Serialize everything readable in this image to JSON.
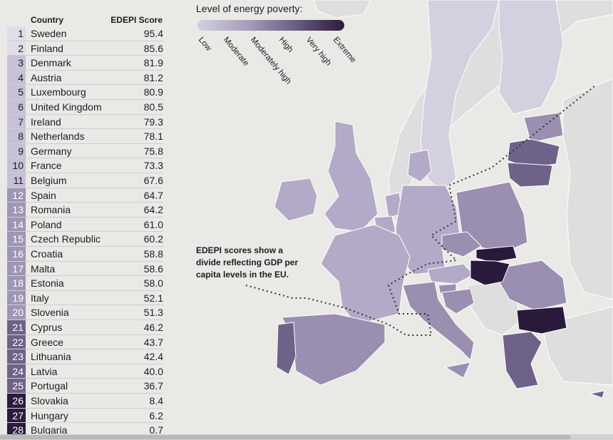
{
  "table": {
    "header_country": "Country",
    "header_score": "EDEPI Score",
    "rows": [
      {
        "rank": "1",
        "country": "Sweden",
        "score": "95.4",
        "color": "#e0dde8",
        "text_color": "#1d1d1d"
      },
      {
        "rank": "2",
        "country": "Finland",
        "score": "85.6",
        "color": "#e0dde8",
        "text_color": "#1d1d1d"
      },
      {
        "rank": "3",
        "country": "Denmark",
        "score": "81.9",
        "color": "#c7c0d6",
        "text_color": "#1d1d1d"
      },
      {
        "rank": "4",
        "country": "Austria",
        "score": "81.2",
        "color": "#c7c0d6",
        "text_color": "#1d1d1d"
      },
      {
        "rank": "5",
        "country": "Luxembourg",
        "score": "80.9",
        "color": "#c7c0d6",
        "text_color": "#1d1d1d"
      },
      {
        "rank": "6",
        "country": "United Kingdom",
        "score": "80.5",
        "color": "#c7c0d6",
        "text_color": "#1d1d1d"
      },
      {
        "rank": "7",
        "country": "Ireland",
        "score": "79.3",
        "color": "#c7c0d6",
        "text_color": "#1d1d1d"
      },
      {
        "rank": "8",
        "country": "Netherlands",
        "score": "78.1",
        "color": "#c7c0d6",
        "text_color": "#1d1d1d"
      },
      {
        "rank": "9",
        "country": "Germany",
        "score": "75.8",
        "color": "#c7c0d6",
        "text_color": "#1d1d1d"
      },
      {
        "rank": "10",
        "country": "France",
        "score": "73.3",
        "color": "#c7c0d6",
        "text_color": "#1d1d1d"
      },
      {
        "rank": "11",
        "country": "Belgium",
        "score": "67.6",
        "color": "#c7c0d6",
        "text_color": "#1d1d1d"
      },
      {
        "rank": "12",
        "country": "Spain",
        "score": "64.7",
        "color": "#9f95b5",
        "text_color": "#ffffff"
      },
      {
        "rank": "13",
        "country": "Romania",
        "score": "64.2",
        "color": "#9f95b5",
        "text_color": "#ffffff"
      },
      {
        "rank": "14",
        "country": "Poland",
        "score": "61.0",
        "color": "#9f95b5",
        "text_color": "#ffffff"
      },
      {
        "rank": "15",
        "country": "Czech Republic",
        "score": "60.2",
        "color": "#9f95b5",
        "text_color": "#ffffff"
      },
      {
        "rank": "16",
        "country": "Croatia",
        "score": "58.8",
        "color": "#9f95b5",
        "text_color": "#ffffff"
      },
      {
        "rank": "17",
        "country": "Malta",
        "score": "58.6",
        "color": "#9f95b5",
        "text_color": "#ffffff"
      },
      {
        "rank": "18",
        "country": "Estonia",
        "score": "58.0",
        "color": "#9f95b5",
        "text_color": "#ffffff"
      },
      {
        "rank": "19",
        "country": "Italy",
        "score": "52.1",
        "color": "#9f95b5",
        "text_color": "#ffffff"
      },
      {
        "rank": "20",
        "country": "Slovenia",
        "score": "51.3",
        "color": "#9f95b5",
        "text_color": "#ffffff"
      },
      {
        "rank": "21",
        "country": "Cyprus",
        "score": "46.2",
        "color": "#6f6288",
        "text_color": "#ffffff"
      },
      {
        "rank": "22",
        "country": "Greece",
        "score": "43.7",
        "color": "#6f6288",
        "text_color": "#ffffff"
      },
      {
        "rank": "23",
        "country": "Lithuania",
        "score": "42.4",
        "color": "#6f6288",
        "text_color": "#ffffff"
      },
      {
        "rank": "24",
        "country": "Latvia",
        "score": "40.0",
        "color": "#6f6288",
        "text_color": "#ffffff"
      },
      {
        "rank": "25",
        "country": "Portugal",
        "score": "36.7",
        "color": "#6f6288",
        "text_color": "#ffffff"
      },
      {
        "rank": "26",
        "country": "Slovakia",
        "score": "8.4",
        "color": "#2b1b3c",
        "text_color": "#ffffff"
      },
      {
        "rank": "27",
        "country": "Hungary",
        "score": "6.2",
        "color": "#2b1b3c",
        "text_color": "#ffffff"
      },
      {
        "rank": "28",
        "country": "Bulgaria",
        "score": "0.7",
        "color": "#2b1b3c",
        "text_color": "#ffffff"
      }
    ]
  },
  "legend": {
    "title": "Level of energy poverty:",
    "levels": [
      "Low",
      "Moderate",
      "Moderately high",
      "High",
      "Very high",
      "Extreme"
    ],
    "colors": [
      "#d4d0e0",
      "#b3aac7",
      "#9a8fb0",
      "#7d6f97",
      "#4e3e66",
      "#2a1a3a"
    ]
  },
  "annotation": {
    "text": "EDEPI scores show a divide reflecting GDP per capita levels in the EU."
  },
  "map_colors": {
    "sea": "#e9e9e6",
    "non_eu_land": "#dedede",
    "low": "#d4d0e0",
    "moderate": "#b3aac7",
    "moderately_high": "#9a8fb0",
    "high": "#7d6f97",
    "very_high": "#4e3e66",
    "extreme": "#2a1a3a",
    "border": "#ffffff",
    "divide_line": "#333333"
  }
}
